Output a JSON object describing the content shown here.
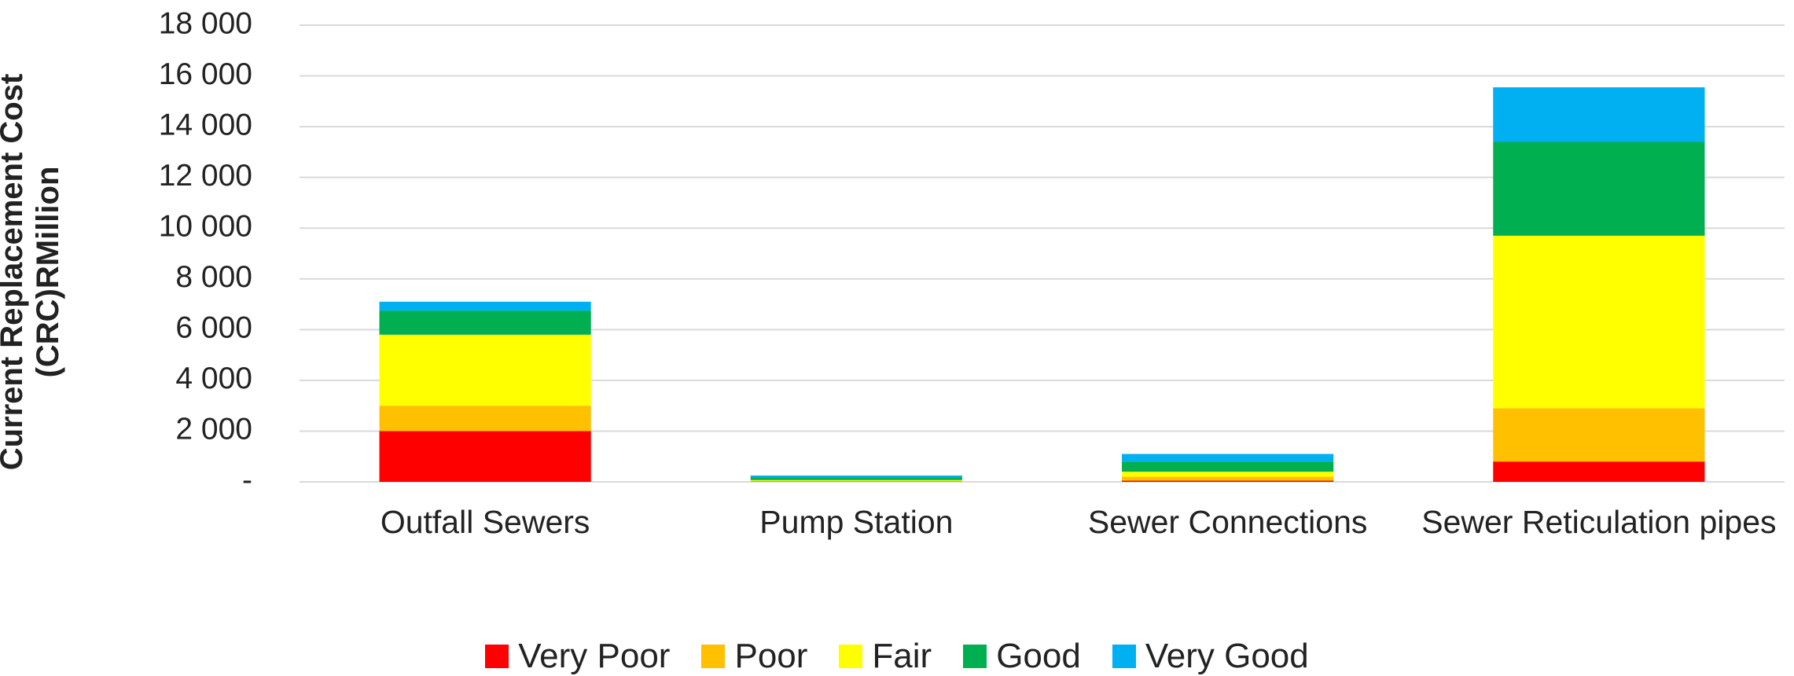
{
  "chart_data": {
    "type": "bar",
    "stacked": true,
    "y_label": "Current Replacement  Cost (CRC)RMillion",
    "categories": [
      "Outfall Sewers",
      "Pump Station",
      "Sewer Connections",
      "Sewer Reticulation pipes"
    ],
    "series": [
      {
        "name": "Very Poor",
        "color": "#ff0000",
        "values": [
          2000,
          10,
          50,
          800
        ]
      },
      {
        "name": "Poor",
        "color": "#ffc000",
        "values": [
          1000,
          20,
          150,
          2100
        ]
      },
      {
        "name": "Fair",
        "color": "#ffff00",
        "values": [
          2800,
          40,
          200,
          6800
        ]
      },
      {
        "name": "Good",
        "color": "#00b050",
        "values": [
          950,
          100,
          400,
          3700
        ]
      },
      {
        "name": "Very Good",
        "color": "#00b0f0",
        "values": [
          350,
          80,
          300,
          2150
        ]
      }
    ],
    "ylim": [
      0,
      18000
    ],
    "yticks": [
      {
        "value": 0,
        "label": "-"
      },
      {
        "value": 2000,
        "label": "2 000"
      },
      {
        "value": 4000,
        "label": "4 000"
      },
      {
        "value": 6000,
        "label": "6 000"
      },
      {
        "value": 8000,
        "label": "8 000"
      },
      {
        "value": 10000,
        "label": "10 000"
      },
      {
        "value": 12000,
        "label": "12 000"
      },
      {
        "value": 14000,
        "label": "14 000"
      },
      {
        "value": 16000,
        "label": "16 000"
      },
      {
        "value": 18000,
        "label": "18 000"
      }
    ],
    "grid": true,
    "legend": "bottom"
  }
}
